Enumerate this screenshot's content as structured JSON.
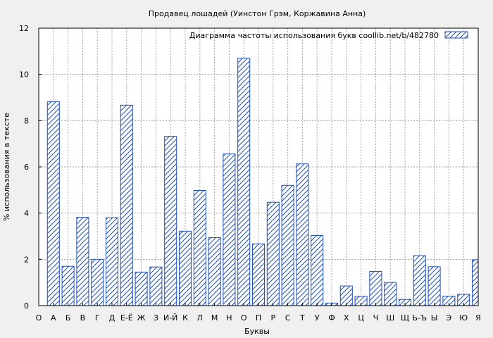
{
  "chart_data": {
    "type": "bar",
    "title": "Продавец лошадей (Уинстон Грэм, Коржавина Анна)",
    "xlabel": "Буквы",
    "ylabel": "% использования в тексте",
    "ylim": [
      0,
      12
    ],
    "yticks": [
      0,
      2,
      4,
      6,
      8,
      10,
      12
    ],
    "grid": true,
    "legend": {
      "label": "Диаграмма частоты использования букв  coollib.net/b/482780",
      "position": "top-right"
    },
    "series": [
      {
        "name": "Диаграмма частоты использования букв  coollib.net/b/482780"
      }
    ],
    "categories": [
      "О",
      "А",
      "Б",
      "В",
      "Г",
      "Д",
      "Е-Ё",
      "Ж",
      "З",
      "И-Й",
      "К",
      "Л",
      "М",
      "Н",
      "О",
      "П",
      "Р",
      "С",
      "Т",
      "У",
      "Ф",
      "Х",
      "Ц",
      "Ч",
      "Ш",
      "Щ",
      "Ь-Ъ",
      "Ы",
      "Э",
      "Ю",
      "Я"
    ],
    "values": [
      null,
      8.82,
      1.7,
      3.82,
      2.0,
      3.8,
      8.67,
      1.45,
      1.67,
      7.32,
      3.22,
      4.98,
      2.94,
      6.56,
      10.7,
      2.67,
      4.47,
      5.2,
      6.13,
      3.03,
      0.11,
      0.85,
      0.4,
      1.48,
      1.0,
      0.27,
      2.16,
      1.68,
      0.41,
      0.49,
      1.98
    ],
    "colors": {
      "bar_stroke": "#1f4fb4",
      "hatch": "#1f4fb4",
      "bar_fill": "#ffffff",
      "grid": "#a0a0a0"
    }
  }
}
